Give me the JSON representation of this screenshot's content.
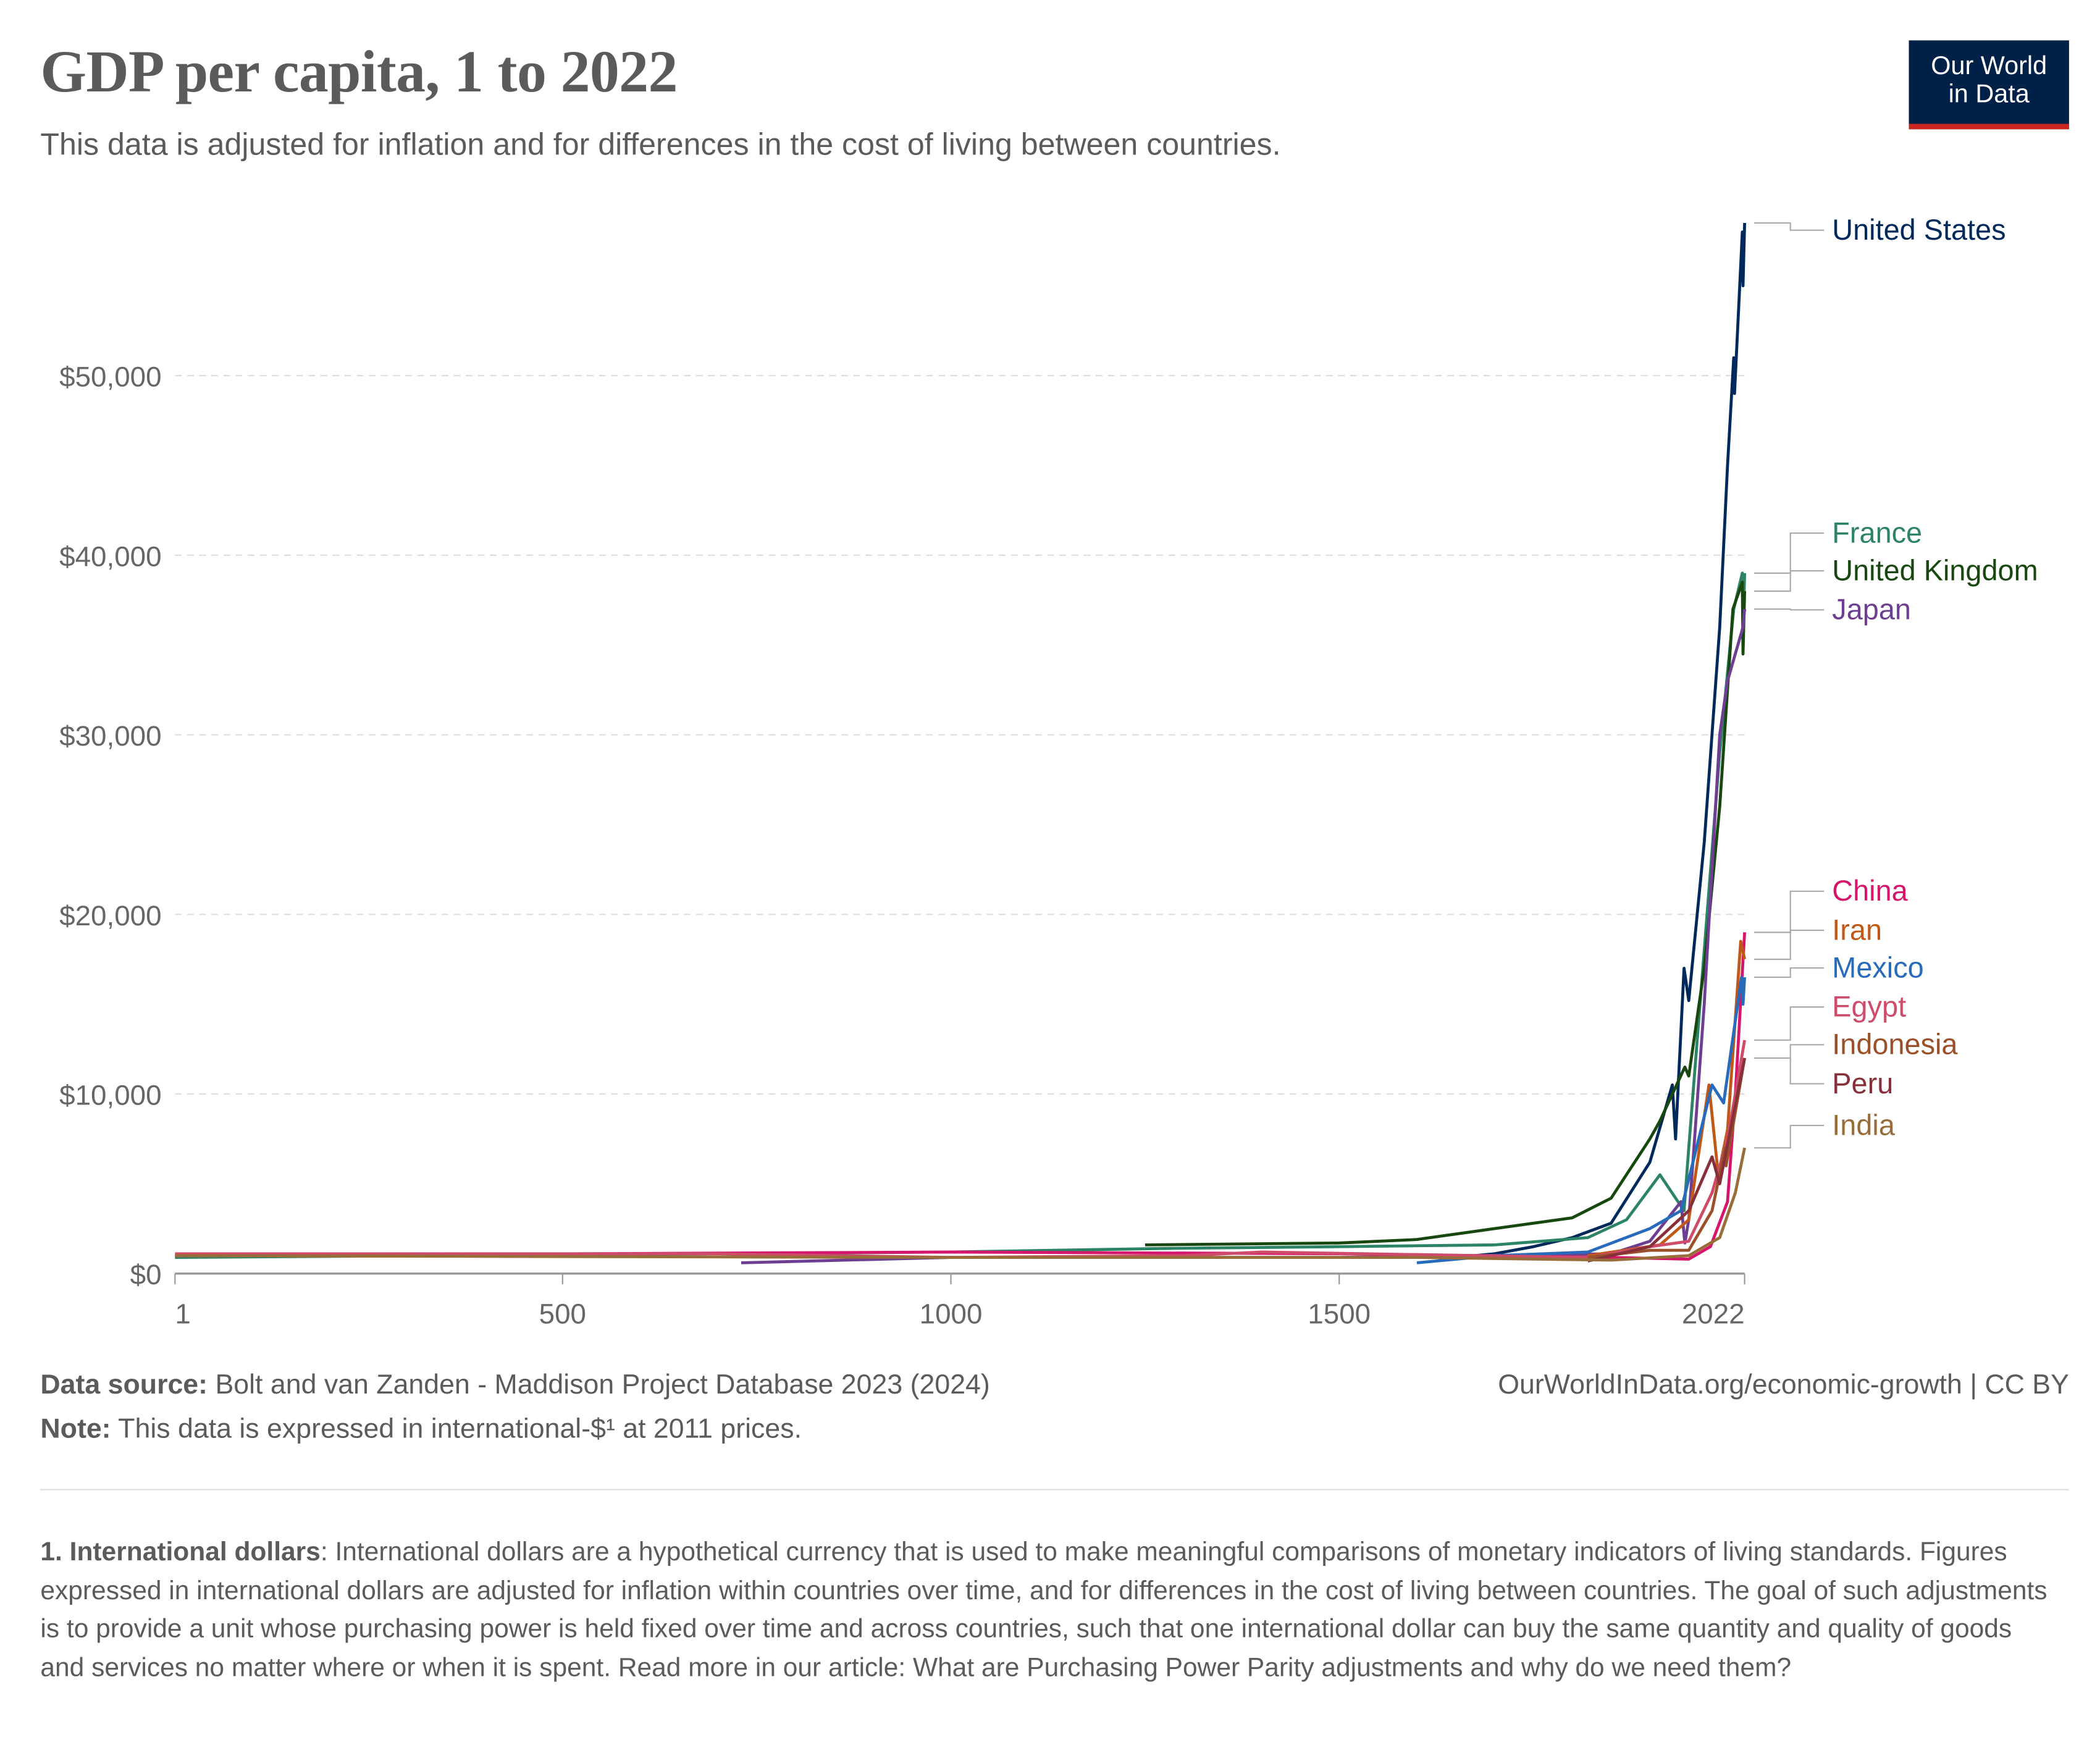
{
  "header": {
    "title": "GDP per capita, 1 to 2022",
    "subtitle": "This data is adjusted for inflation and for differences in the cost of living between countries.",
    "logo_line1": "Our World",
    "logo_line2": "in Data"
  },
  "footer": {
    "source_label": "Data source:",
    "source_text": " Bolt and van Zanden - Maddison Project Database 2023 (2024)",
    "note_label": "Note:",
    "note_text": " This data is expressed in international-$¹ at 2011 prices.",
    "url": "OurWorldInData.org/economic-growth | CC BY",
    "footnote_label": "1. International dollars",
    "footnote_text": ": International dollars are a hypothetical currency that is used to make meaningful comparisons of monetary indicators of living standards. Figures expressed in international dollars are adjusted for inflation within countries over time, and for differences in the cost of living between countries. The goal of such adjustments is to provide a unit whose purchasing power is held fixed over time and across countries, such that one international dollar can buy the same quantity and quality of goods and services no matter where or when it is spent. Read more in our article: What are Purchasing Power Parity adjustments and why do we need them?"
  },
  "chart_data": {
    "type": "line",
    "title": "GDP per capita, 1 to 2022",
    "xlabel": "",
    "ylabel": "",
    "xlim": [
      1,
      2022
    ],
    "ylim": [
      0,
      58500
    ],
    "grid": "horizontal-dashed",
    "legend": "right-labels",
    "x_ticks": [
      1,
      500,
      1000,
      1500,
      2022
    ],
    "y_ticks": [
      {
        "v": 0,
        "label": "$0"
      },
      {
        "v": 10000,
        "label": "$10,000"
      },
      {
        "v": 20000,
        "label": "$20,000"
      },
      {
        "v": 30000,
        "label": "$30,000"
      },
      {
        "v": 40000,
        "label": "$40,000"
      },
      {
        "v": 50000,
        "label": "$50,000"
      }
    ],
    "series": [
      {
        "name": "United States",
        "color": "#00295b",
        "points": [
          [
            1650,
            900
          ],
          [
            1700,
            1100
          ],
          [
            1750,
            1500
          ],
          [
            1800,
            2000
          ],
          [
            1850,
            2800
          ],
          [
            1900,
            6200
          ],
          [
            1929,
            10500
          ],
          [
            1933,
            7500
          ],
          [
            1944,
            17000
          ],
          [
            1950,
            15200
          ],
          [
            1970,
            24000
          ],
          [
            1990,
            36000
          ],
          [
            2000,
            45000
          ],
          [
            2008,
            51000
          ],
          [
            2009,
            49000
          ],
          [
            2019,
            58000
          ],
          [
            2020,
            55000
          ],
          [
            2022,
            58500
          ]
        ]
      },
      {
        "name": "France",
        "color": "#2c8465",
        "points": [
          [
            1,
            900
          ],
          [
            1000,
            1200
          ],
          [
            1280,
            1400
          ],
          [
            1500,
            1500
          ],
          [
            1700,
            1600
          ],
          [
            1820,
            2000
          ],
          [
            1870,
            3000
          ],
          [
            1913,
            5500
          ],
          [
            1944,
            3500
          ],
          [
            1950,
            7000
          ],
          [
            1970,
            18000
          ],
          [
            1990,
            29000
          ],
          [
            2008,
            37000
          ],
          [
            2019,
            39000
          ],
          [
            2020,
            35500
          ],
          [
            2022,
            39000
          ]
        ]
      },
      {
        "name": "United Kingdom",
        "color": "#18470f",
        "points": [
          [
            1250,
            1600
          ],
          [
            1500,
            1700
          ],
          [
            1600,
            1900
          ],
          [
            1700,
            2500
          ],
          [
            1800,
            3100
          ],
          [
            1850,
            4200
          ],
          [
            1900,
            7500
          ],
          [
            1913,
            8500
          ],
          [
            1945,
            11500
          ],
          [
            1950,
            11000
          ],
          [
            1970,
            17000
          ],
          [
            1990,
            26000
          ],
          [
            2007,
            37000
          ],
          [
            2019,
            38500
          ],
          [
            2020,
            34500
          ],
          [
            2022,
            38000
          ]
        ]
      },
      {
        "name": "Japan",
        "color": "#6d3e91",
        "points": [
          [
            730,
            600
          ],
          [
            1000,
            900
          ],
          [
            1500,
            900
          ],
          [
            1850,
            1100
          ],
          [
            1900,
            1800
          ],
          [
            1940,
            4000
          ],
          [
            1945,
            1700
          ],
          [
            1950,
            3000
          ],
          [
            1970,
            15000
          ],
          [
            1990,
            30000
          ],
          [
            2000,
            33000
          ],
          [
            2020,
            36000
          ],
          [
            2022,
            37000
          ]
        ]
      },
      {
        "name": "China",
        "color": "#d6156c",
        "points": [
          [
            1,
            1000
          ],
          [
            1000,
            1200
          ],
          [
            1500,
            1100
          ],
          [
            1850,
            900
          ],
          [
            1950,
            800
          ],
          [
            1978,
            1500
          ],
          [
            2000,
            4000
          ],
          [
            2010,
            10000
          ],
          [
            2022,
            19000
          ]
        ]
      },
      {
        "name": "Iran",
        "color": "#c05917",
        "points": [
          [
            1820,
            1000
          ],
          [
            1913,
            1600
          ],
          [
            1950,
            3000
          ],
          [
            1976,
            10500
          ],
          [
            1988,
            5500
          ],
          [
            2000,
            8000
          ],
          [
            2017,
            18500
          ],
          [
            2022,
            17500
          ]
        ]
      },
      {
        "name": "Mexico",
        "color": "#286bbb",
        "points": [
          [
            1600,
            600
          ],
          [
            1700,
            1000
          ],
          [
            1820,
            1200
          ],
          [
            1900,
            2500
          ],
          [
            1940,
            3500
          ],
          [
            1980,
            10500
          ],
          [
            1995,
            9500
          ],
          [
            2018,
            16500
          ],
          [
            2020,
            15000
          ],
          [
            2022,
            16500
          ]
        ]
      },
      {
        "name": "Egypt",
        "color": "#cf4b6a",
        "points": [
          [
            1,
            1100
          ],
          [
            700,
            1100
          ],
          [
            1000,
            900
          ],
          [
            1300,
            1000
          ],
          [
            1400,
            1200
          ],
          [
            1820,
            900
          ],
          [
            1900,
            1500
          ],
          [
            1950,
            1800
          ],
          [
            1980,
            4500
          ],
          [
            2000,
            7500
          ],
          [
            2022,
            13000
          ]
        ]
      },
      {
        "name": "Indonesia",
        "color": "#9a5129",
        "points": [
          [
            1820,
            900
          ],
          [
            1900,
            1300
          ],
          [
            1950,
            1300
          ],
          [
            1980,
            3500
          ],
          [
            1997,
            7000
          ],
          [
            1998,
            6000
          ],
          [
            2022,
            12000
          ]
        ]
      },
      {
        "name": "Peru",
        "color": "#883039",
        "points": [
          [
            1820,
            700
          ],
          [
            1900,
            1500
          ],
          [
            1950,
            3500
          ],
          [
            1980,
            6500
          ],
          [
            1990,
            5000
          ],
          [
            2022,
            12000
          ]
        ]
      },
      {
        "name": "India",
        "color": "#996d39",
        "points": [
          [
            1,
            1000
          ],
          [
            1000,
            900
          ],
          [
            1600,
            900
          ],
          [
            1850,
            750
          ],
          [
            1950,
            1000
          ],
          [
            1990,
            2000
          ],
          [
            2010,
            4500
          ],
          [
            2022,
            7000
          ]
        ]
      }
    ]
  }
}
